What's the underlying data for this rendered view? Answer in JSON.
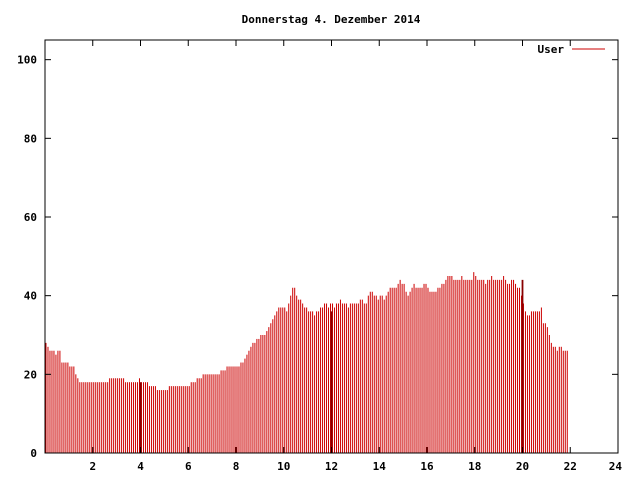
{
  "chart_data": {
    "type": "bar",
    "title": "Donnerstag 4. Dezember 2014",
    "xlabel": "",
    "ylabel": "",
    "xlim": [
      0,
      24
    ],
    "ylim": [
      0,
      105
    ],
    "x_ticks": [
      2,
      4,
      6,
      8,
      10,
      12,
      14,
      16,
      18,
      20,
      22,
      24
    ],
    "x_tick_labels": [
      "2",
      "4",
      "6",
      "8",
      "10",
      "12",
      "14",
      "16",
      "18",
      "20",
      "22",
      "24"
    ],
    "y_ticks": [
      0,
      20,
      40,
      60,
      80,
      100
    ],
    "y_tick_labels": [
      "0",
      "20",
      "40",
      "60",
      "80",
      "100"
    ],
    "grid": false,
    "legend_position": "top-right",
    "bar_interval_minutes": 5,
    "series": [
      {
        "name": "User",
        "color": "#cc0000",
        "values": [
          28,
          27,
          26,
          26,
          26,
          25,
          26,
          26,
          23,
          23,
          23,
          23,
          22,
          22,
          22,
          20,
          19,
          18,
          18,
          18,
          18,
          18,
          18,
          18,
          18,
          18,
          18,
          18,
          18,
          18,
          18,
          18,
          19,
          19,
          19,
          19,
          19,
          19,
          19,
          19,
          18,
          18,
          18,
          18,
          18,
          18,
          18,
          19,
          18,
          18,
          18,
          18,
          17,
          17,
          17,
          17,
          16,
          16,
          16,
          16,
          16,
          16,
          17,
          17,
          17,
          17,
          17,
          17,
          17,
          17,
          17,
          17,
          17,
          18,
          18,
          18,
          19,
          19,
          19,
          20,
          20,
          20,
          20,
          20,
          20,
          20,
          20,
          20,
          21,
          21,
          21,
          22,
          22,
          22,
          22,
          22,
          22,
          22,
          23,
          23,
          24,
          25,
          26,
          27,
          28,
          28,
          29,
          29,
          30,
          30,
          30,
          31,
          32,
          33,
          34,
          35,
          36,
          37,
          37,
          37,
          37,
          36,
          38,
          40,
          42,
          42,
          40,
          39,
          39,
          38,
          37,
          37,
          36,
          36,
          36,
          35,
          36,
          36,
          37,
          37,
          38,
          38,
          37,
          38,
          38,
          37,
          38,
          38,
          39,
          38,
          38,
          38,
          37,
          38,
          38,
          38,
          38,
          38,
          39,
          39,
          38,
          38,
          40,
          41,
          41,
          40,
          40,
          39,
          40,
          40,
          39,
          40,
          41,
          42,
          42,
          42,
          42,
          43,
          44,
          43,
          43,
          41,
          40,
          41,
          42,
          43,
          42,
          42,
          42,
          42,
          43,
          43,
          42,
          41,
          41,
          41,
          41,
          42,
          42,
          43,
          43,
          44,
          45,
          45,
          45,
          44,
          44,
          44,
          44,
          45,
          44,
          44,
          44,
          44,
          44,
          46,
          45,
          44,
          44,
          44,
          44,
          43,
          44,
          44,
          45,
          44,
          44,
          44,
          44,
          44,
          45,
          44,
          43,
          43,
          44,
          44,
          43,
          42,
          42,
          40,
          38,
          36,
          35,
          35,
          36,
          36,
          36,
          36,
          36,
          37,
          33,
          33,
          32,
          30,
          28,
          27,
          27,
          26,
          27,
          27,
          26,
          26,
          26
        ]
      }
    ],
    "markers": [
      {
        "x": 4.0,
        "value": 18
      },
      {
        "x": 12.0,
        "value": 36
      },
      {
        "x": 20.0,
        "value": 44
      }
    ]
  }
}
